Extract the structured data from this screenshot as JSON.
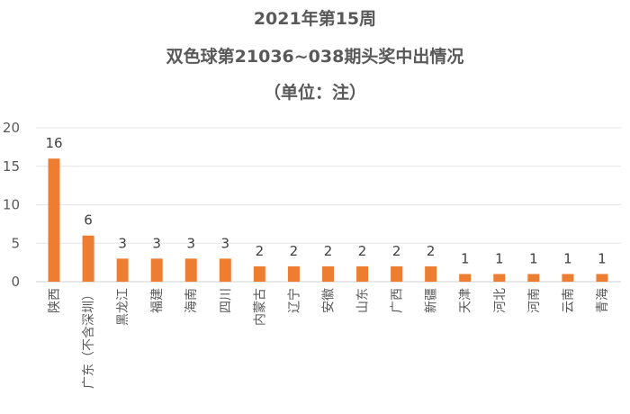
{
  "chart_data": {
    "type": "bar",
    "title_lines": [
      "2021年第15周",
      "双色球第21036~038期头奖中出情况",
      "（单位：注）"
    ],
    "categories": [
      "陕西",
      "广东（不含深圳）",
      "黑龙江",
      "福建",
      "海南",
      "四川",
      "内蒙古",
      "辽宁",
      "安徽",
      "山东",
      "广西",
      "新疆",
      "天津",
      "河北",
      "河南",
      "云南",
      "青海"
    ],
    "values": [
      16,
      6,
      3,
      3,
      3,
      3,
      2,
      2,
      2,
      2,
      2,
      2,
      1,
      1,
      1,
      1,
      1
    ],
    "ylim": [
      0,
      20
    ],
    "yticks": [
      0,
      5,
      10,
      15,
      20
    ],
    "grid": true,
    "bar_color": "#ED7D31",
    "data_labels": true
  }
}
